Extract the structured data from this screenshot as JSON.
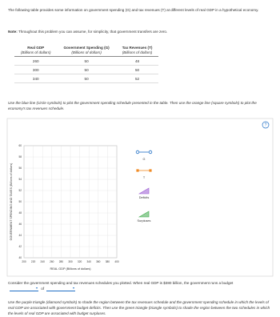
{
  "intro": "The following table provides some information on government spending (G) and tax revenues (T) at different levels of real GDP in a hypothetical economy.",
  "note": {
    "label": "Note:",
    "text": "Throughout this problem you can assume, for simplicity, that government transfers are zero."
  },
  "table": {
    "headers": [
      [
        "Real GDP",
        "(Billions of dollars)"
      ],
      [
        "Government Spending (G)",
        "(Billions of dollars)"
      ],
      [
        "Tax Revenues (T)",
        "(Billions of dollars)"
      ]
    ],
    "rows": [
      [
        260,
        50,
        48
      ],
      [
        300,
        50,
        50
      ],
      [
        340,
        50,
        52
      ]
    ]
  },
  "instruction": "Use the blue line (circle symbols) to plot the government spending schedule presented in the table. Then use the orange line (square symbols) to plot the economy's tax revenues schedule.",
  "graph": {
    "help": "?",
    "y_label": "GOVERNMENT SPENDING AND TAXES (Billions of dollars)",
    "x_label": "REAL GDP (Billions of dollars)",
    "xlim": [
      200,
      400
    ],
    "ylim": [
      40,
      60
    ],
    "xticks": [
      200,
      220,
      240,
      260,
      280,
      300,
      320,
      340,
      360,
      380,
      400
    ],
    "yticks": [
      40,
      42,
      44,
      46,
      48,
      50,
      52,
      54,
      56,
      58,
      60
    ],
    "tools": [
      {
        "label": "G",
        "color": "#1f6fc5"
      },
      {
        "label": "T",
        "color": "#f08a24"
      },
      {
        "label": "Deficits",
        "color": "#9b5bd3"
      },
      {
        "label": "Surpluses",
        "color": "#3faa4a"
      }
    ]
  },
  "question": {
    "before": "Consider the government spending and tax revenues schedules you plotted. When real GDP is $380 billion, the government runs a budget",
    "middle": "of"
  },
  "shading_instruction": "Use the purple triangle (diamond symbols) to shade the region between the tax revenues schedule and the government spending schedule in which the levels of real GDP are associated with government budget deficits. Then use the green triangle (triangle symbols) to shade the region between the two schedules in which the levels of real GDP are associated with budget surpluses."
}
